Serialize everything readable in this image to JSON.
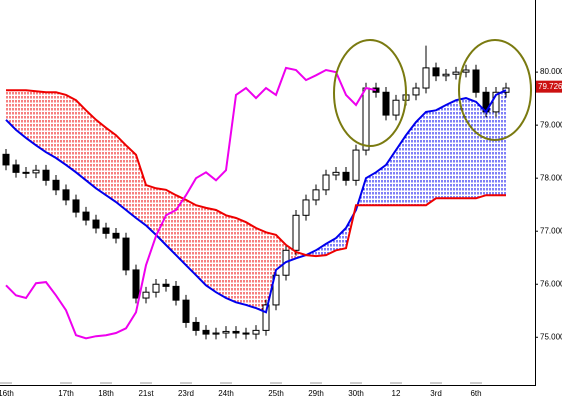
{
  "chart_data": {
    "type": "candlestick",
    "categories": [
      "16th",
      null,
      null,
      null,
      null,
      null,
      "17th",
      null,
      null,
      null,
      "18th",
      null,
      null,
      null,
      "21st",
      null,
      null,
      null,
      "23rd",
      null,
      null,
      null,
      "24th",
      null,
      null,
      null,
      null,
      "25th",
      null,
      null,
      null,
      "29th",
      null,
      null,
      null,
      "30th",
      null,
      null,
      null,
      "12",
      null,
      null,
      null,
      "3rd",
      null,
      null,
      null,
      "6th",
      null,
      null,
      null
    ],
    "open": [
      78.45,
      78.25,
      78.11,
      78.1,
      78.15,
      77.96,
      77.78,
      77.59,
      77.36,
      77.21,
      77.06,
      76.96,
      76.87,
      76.27,
      75.74,
      75.85,
      76.0,
      75.96,
      75.7,
      75.28,
      75.13,
      75.06,
      75.08,
      75.11,
      75.08,
      75.06,
      75.13,
      75.61,
      76.17,
      76.64,
      77.3,
      77.59,
      77.78,
      78.06,
      78.11,
      77.96,
      78.53,
      79.7,
      79.62,
      79.19,
      79.47,
      79.57,
      79.7,
      80.08,
      79.93,
      79.96,
      80.0,
      80.04,
      79.62,
      79.25,
      79.62
    ],
    "high": [
      78.55,
      78.35,
      78.21,
      78.25,
      78.25,
      78.06,
      77.88,
      77.69,
      77.46,
      77.31,
      77.16,
      77.06,
      76.97,
      76.37,
      75.95,
      76.1,
      76.1,
      76.06,
      75.8,
      75.38,
      75.23,
      75.18,
      75.21,
      75.21,
      75.18,
      75.23,
      75.71,
      76.27,
      76.74,
      77.4,
      77.69,
      77.88,
      78.16,
      78.21,
      78.21,
      78.63,
      79.8,
      79.8,
      79.72,
      79.57,
      79.67,
      79.8,
      80.5,
      80.18,
      80.06,
      80.1,
      80.14,
      80.14,
      79.72,
      79.72,
      79.8
    ],
    "low": [
      78.15,
      78.01,
      78.0,
      78.0,
      77.86,
      77.68,
      77.49,
      77.26,
      77.11,
      76.96,
      76.86,
      76.77,
      76.17,
      75.64,
      75.64,
      75.75,
      75.86,
      75.6,
      75.18,
      75.03,
      74.96,
      74.96,
      74.98,
      74.98,
      74.96,
      74.96,
      75.03,
      75.51,
      76.07,
      76.54,
      77.2,
      77.49,
      77.68,
      77.96,
      77.86,
      77.86,
      78.43,
      79.52,
      79.09,
      79.09,
      79.37,
      79.47,
      79.6,
      79.83,
      79.83,
      79.86,
      79.9,
      79.52,
      79.15,
      79.15,
      79.52
    ],
    "close": [
      78.25,
      78.11,
      78.1,
      78.15,
      77.96,
      77.78,
      77.59,
      77.36,
      77.21,
      77.06,
      76.96,
      76.87,
      76.27,
      75.74,
      75.85,
      76.0,
      75.96,
      75.7,
      75.28,
      75.13,
      75.06,
      75.08,
      75.11,
      75.08,
      75.06,
      75.13,
      75.61,
      76.17,
      76.64,
      77.3,
      77.59,
      77.78,
      78.06,
      78.11,
      77.96,
      78.53,
      79.7,
      79.62,
      79.19,
      79.47,
      79.57,
      79.7,
      80.08,
      79.93,
      79.96,
      80.0,
      80.04,
      79.62,
      79.25,
      79.62,
      79.7
    ],
    "up_color": "#ffffff",
    "down_color": "#000000",
    "series": [
      {
        "color": "#0000ee",
        "values": [
          79.1,
          78.91,
          78.76,
          78.62,
          78.49,
          78.38,
          78.25,
          78.11,
          77.96,
          77.81,
          77.68,
          77.55,
          77.4,
          77.25,
          77.11,
          76.93,
          76.74,
          76.55,
          76.36,
          76.17,
          75.98,
          75.85,
          75.74,
          75.66,
          75.61,
          75.55,
          75.47,
          76.27,
          76.42,
          76.49,
          76.55,
          76.64,
          76.76,
          76.87,
          77.06,
          77.4,
          78.0,
          78.11,
          78.25,
          78.53,
          78.81,
          79.06,
          79.25,
          79.28,
          79.38,
          79.47,
          79.51,
          79.44,
          79.25,
          79.57,
          79.66
        ]
      },
      {
        "color": "#ee0000",
        "values": [
          79.66,
          79.66,
          79.66,
          79.64,
          79.62,
          79.62,
          79.57,
          79.47,
          79.28,
          79.1,
          78.95,
          78.81,
          78.62,
          78.44,
          77.87,
          77.81,
          77.78,
          77.68,
          77.59,
          77.49,
          77.44,
          77.4,
          77.3,
          77.25,
          77.17,
          77.06,
          76.98,
          76.93,
          76.74,
          76.61,
          76.55,
          76.53,
          76.55,
          76.64,
          76.68,
          77.49,
          77.49,
          77.49,
          77.49,
          77.49,
          77.49,
          77.49,
          77.49,
          77.62,
          77.62,
          77.62,
          77.62,
          77.62,
          77.68,
          77.68,
          77.68
        ]
      },
      {
        "color": "#ee00ee",
        "values": [
          75.98,
          75.79,
          75.74,
          76.02,
          76.04,
          75.79,
          75.51,
          75.04,
          74.98,
          75.02,
          75.04,
          75.08,
          75.17,
          75.47,
          76.36,
          76.91,
          77.3,
          77.4,
          77.68,
          78.0,
          78.11,
          77.96,
          78.15,
          79.57,
          79.7,
          79.51,
          79.7,
          79.57,
          80.08,
          80.04,
          79.85,
          79.94,
          80.04,
          80.0,
          79.57,
          79.38,
          79.7,
          79.66,
          null,
          null,
          null,
          null,
          null,
          null,
          null,
          null,
          null,
          null,
          null,
          null,
          null
        ]
      }
    ],
    "ylim": [
      74.1,
      81.36
    ],
    "yticks": [
      {
        "value": 80,
        "label": "80.000"
      },
      {
        "value": 79,
        "label": "79.000"
      },
      {
        "value": 78,
        "label": "78.000"
      },
      {
        "value": 77,
        "label": "77.000"
      },
      {
        "value": 76,
        "label": "76.000"
      },
      {
        "value": 75,
        "label": "75.000"
      }
    ],
    "last_price": 79.726,
    "last_price_color": "#cc1111"
  }
}
